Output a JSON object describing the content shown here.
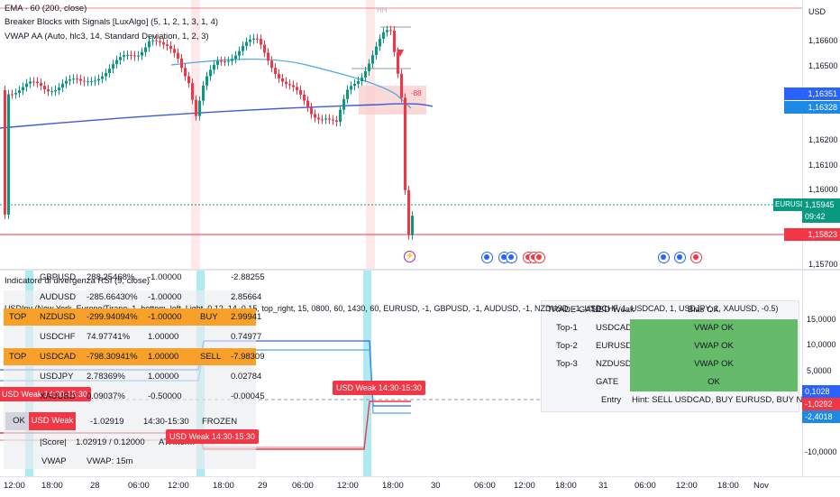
{
  "top_pane": {
    "legend": [
      "EMA · 60 (200, close)",
      "Breaker Blocks with Signals [LuxAlgo] (5, 1, 2, 1, 3, 1, 4)",
      "VWAP AA (Auto, hlc3, 14, Standard Deviation, 1, 2, 3)"
    ],
    "hh_label": "HH",
    "currency": "USD",
    "axis_prices": [
      "1,16600",
      "1,16500",
      "1,16200",
      "1,16100",
      "1,16000",
      "1,15700"
    ],
    "tags": [
      {
        "text": "1,16351",
        "color": "#2962ff"
      },
      {
        "text": "1,16328",
        "color": "#1e88e5"
      },
      {
        "text": "EURUSD",
        "color": "#089981"
      },
      {
        "text": "1,15945",
        "color": "#089981"
      },
      {
        "text": "09:42",
        "color": "#089981"
      },
      {
        "text": "1,15823",
        "color": "#f23645"
      }
    ],
    "box_label": "-88"
  },
  "bottom_pane": {
    "title": "Indicatore di divergenza RSI (9, close)",
    "info_line": "USDInv (New York, Europe/Tirane, 1, bottom_left, Light, 0.12, 14, 0.15, top_right, 15, 0800, 60, 1430, 60, EURUSD, -1, GBPUSD, -1, AUDUSD, -1, NZDUSD, -1, USDCHF, 1, USDCAD, 1, USDJPY, 1, XAUUSD, -0.5)",
    "axis_values": [
      "15,0000",
      "10,0000",
      "5,0000",
      "-10,0000"
    ],
    "tags": [
      {
        "text": "0,1028",
        "color": "#2962ff"
      },
      {
        "text": "-1,0292",
        "color": "#f23645"
      },
      {
        "text": "-2,4018",
        "color": "#1e88e5"
      }
    ],
    "left_table": [
      {
        "c0": "",
        "c1": "GBPUSD",
        "c2": "288.25468%",
        "c3": "-1.00000",
        "c4": "",
        "c5": "-2.88255",
        "hl": false
      },
      {
        "c0": "",
        "c1": "AUDUSD",
        "c2": "-285.66430%",
        "c3": "-1.00000",
        "c4": "",
        "c5": "2.85664",
        "hl": false
      },
      {
        "c0": "TOP",
        "c1": "NZDUSD",
        "c2": "-299.94094%",
        "c3": "-1.00000",
        "c4": "BUY",
        "c5": "2.99941",
        "hl": true
      },
      {
        "c0": "",
        "c1": "USDCHF",
        "c2": "74.97741%",
        "c3": "1.00000",
        "c4": "",
        "c5": "0.74977",
        "hl": false
      },
      {
        "c0": "TOP",
        "c1": "USDCAD",
        "c2": "-798.30941%",
        "c3": "1.00000",
        "c4": "SELL",
        "c5": "-7.98309",
        "hl": true
      },
      {
        "c0": "",
        "c1": "USDJPY",
        "c2": "2.78369%",
        "c3": "1.00000",
        "c4": "",
        "c5": "0.02784",
        "hl": false
      },
      {
        "c0": "",
        "c1": "XAUUSD",
        "c2": "0.09037%",
        "c3": "-0.50000",
        "c4": "",
        "c5": "-0.00045",
        "hl": false
      }
    ],
    "status_row": {
      "ok": "OK",
      "weak": "USD Weak",
      "score": "-1.02919",
      "window": "14:30-15:30",
      "state": "FROZEN"
    },
    "score_row": {
      "label": "|Score|",
      "value": "1.02919 / 0.12000",
      "atr": "ATRnorm"
    },
    "vwap_row": {
      "label": "VWAP",
      "value": "VWAP: 15m"
    },
    "red_labels": [
      "USD Weak 14:30-15:30",
      "USD Weak 14:30-15:30",
      "USD Weak 14:30-15:30"
    ],
    "right_table": {
      "header": [
        "TRADE GATE",
        "USD Weak",
        "Bias OK"
      ],
      "rows": [
        {
          "k": "Top-1",
          "sym": "USDCAD",
          "status": "VWAP OK"
        },
        {
          "k": "Top-2",
          "sym": "EURUSD",
          "status": "VWAP OK"
        },
        {
          "k": "Top-3",
          "sym": "NZDUSD",
          "status": "VWAP OK"
        },
        {
          "k": "",
          "sym": "GATE",
          "status": "OK"
        }
      ],
      "entry_label": "Entry",
      "entry_hint": "Hint: SELL USDCAD, BUY EURUSD, BUY NZDUSD",
      "ok_color": "#66bb6a"
    }
  },
  "x_axis": [
    "12:00",
    "18:00",
    "28",
    "06:00",
    "12:00",
    "18:00",
    "29",
    "06:00",
    "12:00",
    "18:00",
    "30",
    "06:00",
    "12:00",
    "18:00",
    "31",
    "06:00",
    "12:00",
    "18:00",
    "Nov"
  ]
}
